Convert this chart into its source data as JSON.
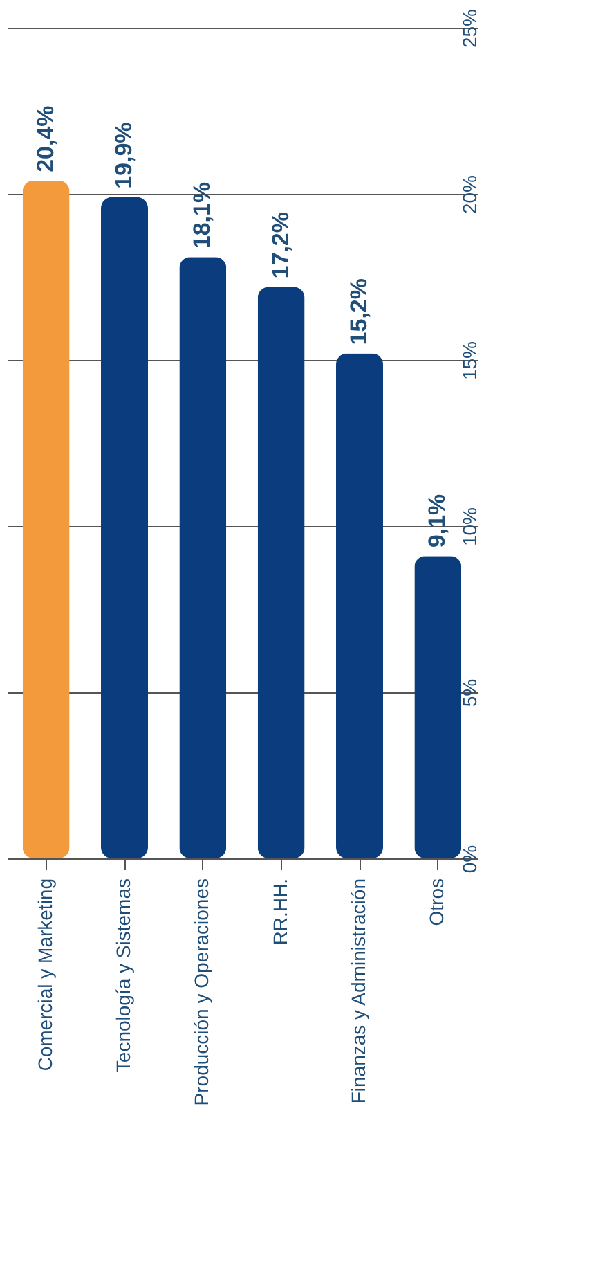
{
  "chart_data": {
    "type": "bar",
    "categories": [
      "Comercial y Marketing",
      "Tecnología y Sistemas",
      "Producción y Operaciones",
      "RR.HH.",
      "Finanzas y Administración",
      "Otros"
    ],
    "values": [
      20.4,
      19.9,
      18.1,
      17.2,
      15.2,
      9.1
    ],
    "colors": [
      "#f39a3c",
      "#0b3d7e",
      "#0b3d7e",
      "#0b3d7e",
      "#0b3d7e",
      "#0b3d7e"
    ],
    "value_labels": [
      "20,4%",
      "19,9%",
      "18,1%",
      "17,2%",
      "15,2%",
      "9,1%"
    ],
    "ylim": [
      0,
      25
    ],
    "yticks": [
      {
        "value": 0,
        "label": "0%"
      },
      {
        "value": 5,
        "label": "5%"
      },
      {
        "value": 10,
        "label": "10%"
      },
      {
        "value": 15,
        "label": "15%"
      },
      {
        "value": 20,
        "label": "20%"
      },
      {
        "value": 25,
        "label": "25%"
      }
    ],
    "grid": "y"
  }
}
